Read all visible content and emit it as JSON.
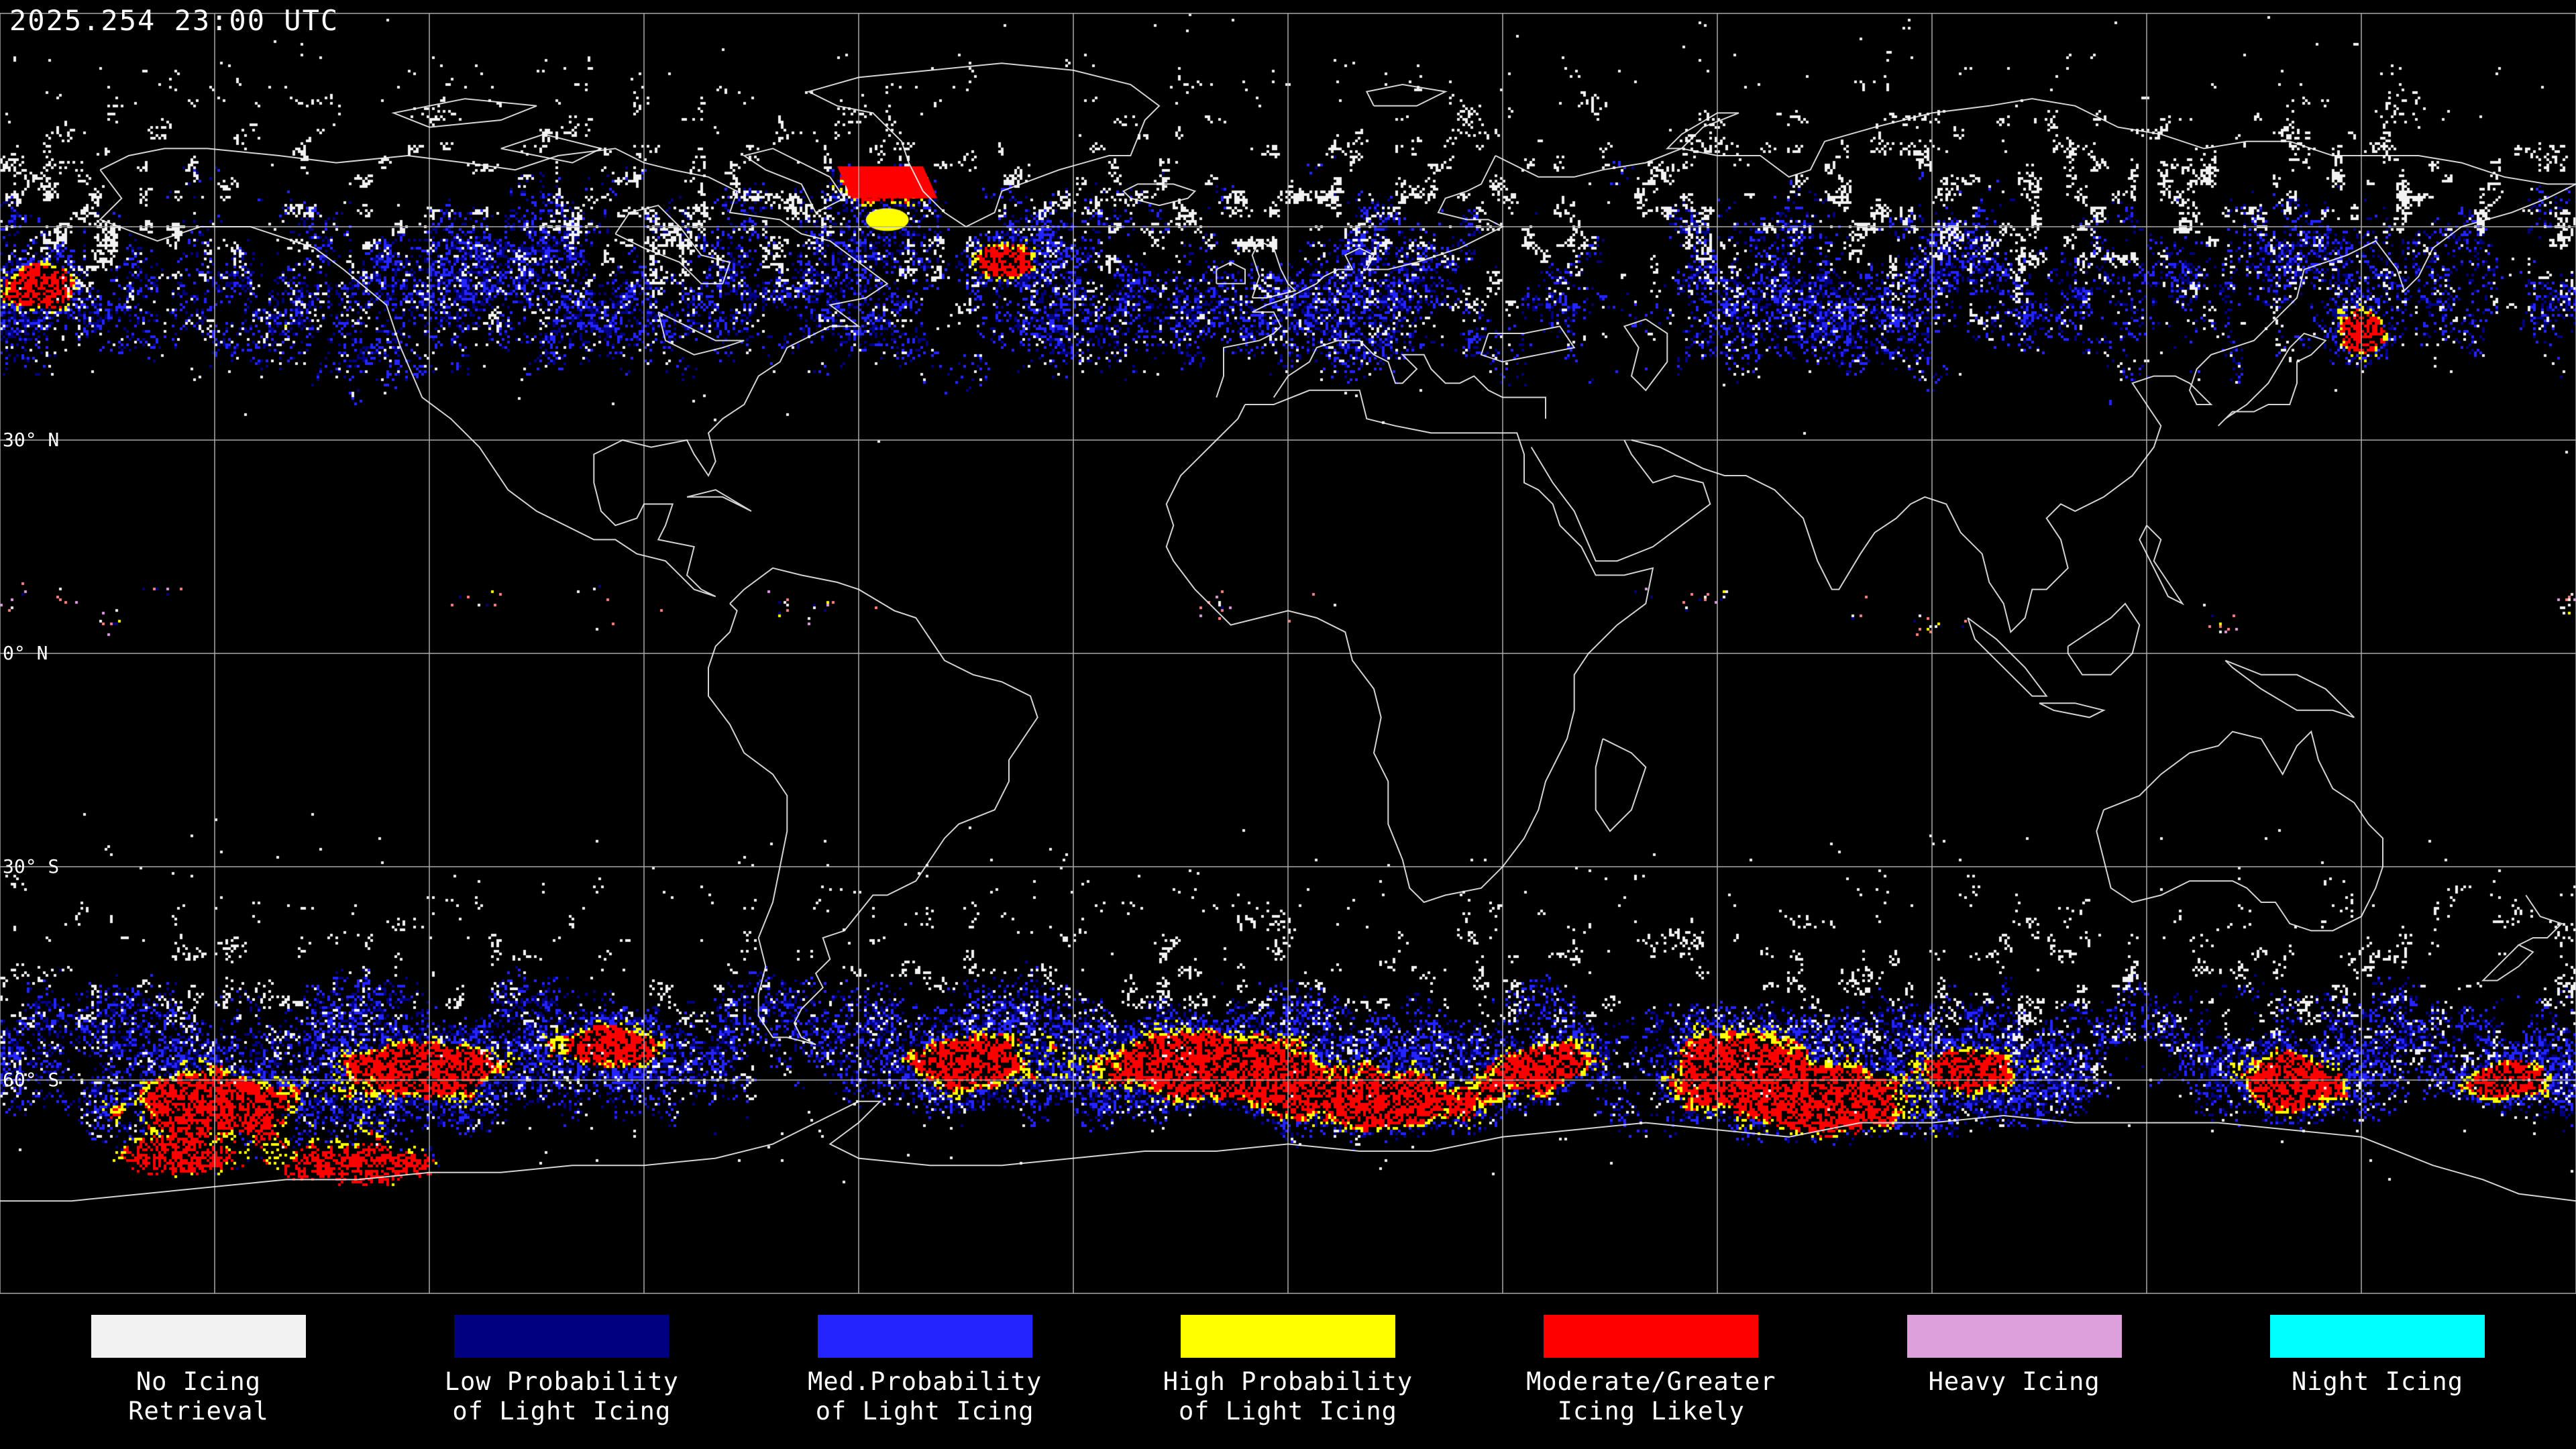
{
  "header": {
    "timestamp": "2025.254 23:00 UTC"
  },
  "map": {
    "background_color": "#000000",
    "coastline_color": "#f0f0f0",
    "grid_color": "#b4b4b4",
    "grid_lat_interval_deg": 30,
    "grid_lon_interval_deg": 30,
    "latitude_labels": [
      {
        "label": "30° N",
        "lat": 30
      },
      {
        "label": "0° N",
        "lat": 0
      },
      {
        "label": "30° S",
        "lat": -30
      },
      {
        "label": "60° S",
        "lat": -60
      }
    ]
  },
  "legend": {
    "items": [
      {
        "name": "no-icing-retrieval",
        "color": "#f2f2f2",
        "label_lines": [
          "No Icing",
          "Retrieval"
        ]
      },
      {
        "name": "low-prob-light-icing",
        "color": "#000080",
        "label_lines": [
          "Low Probability",
          "of Light Icing"
        ]
      },
      {
        "name": "med-prob-light-icing",
        "color": "#2424ff",
        "label_lines": [
          "Med.Probability",
          "of Light Icing"
        ]
      },
      {
        "name": "high-prob-light-icing",
        "color": "#ffff00",
        "label_lines": [
          "High Probability",
          "of Light Icing"
        ]
      },
      {
        "name": "moderate-greater-icing",
        "color": "#ff0000",
        "label_lines": [
          "Moderate/Greater",
          "Icing Likely"
        ]
      },
      {
        "name": "heavy-icing",
        "color": "#dda0dd",
        "label_lines": [
          "Heavy Icing"
        ]
      },
      {
        "name": "night-icing",
        "color": "#00ffff",
        "label_lines": [
          "Night Icing"
        ]
      }
    ]
  }
}
